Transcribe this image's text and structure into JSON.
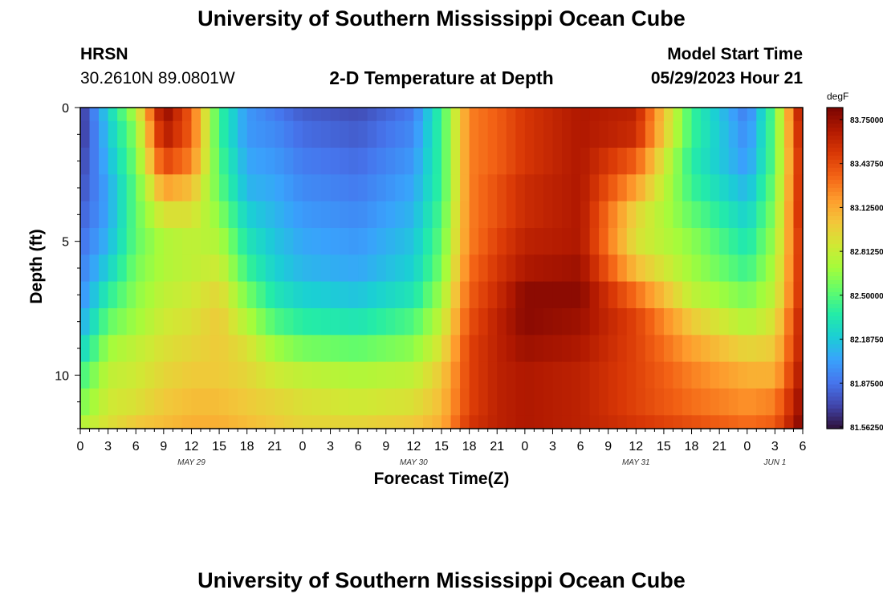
{
  "page": {
    "title_top": "University of Southern Mississippi Ocean Cube",
    "title_bottom": "University of Southern Mississippi Ocean Cube",
    "station_name": "HRSN",
    "station_coords": "30.2610N  89.0801W",
    "model_start_label": "Model Start Time",
    "model_start_value": "05/29/2023 Hour 21"
  },
  "colors": {
    "palette": [
      "#30123b",
      "#4145ab",
      "#4675ed",
      "#39a2fc",
      "#1bcfd4",
      "#24eca6",
      "#61fc6c",
      "#a4fc3b",
      "#d1e834",
      "#f3c63a",
      "#fe9b2d",
      "#f36315",
      "#d93806",
      "#b11901",
      "#7a0402"
    ]
  },
  "chart_data": {
    "type": "heatmap",
    "title": "2-D Temperature at Depth",
    "xlabel": "Forecast Time(Z)",
    "ylabel": "Depth (ft)",
    "x_ticks": [
      "0",
      "3",
      "6",
      "9",
      "12",
      "15",
      "18",
      "21",
      "0",
      "3",
      "6",
      "9",
      "12",
      "15",
      "18",
      "21",
      "0",
      "3",
      "6",
      "9",
      "12",
      "15",
      "18",
      "21",
      "0",
      "3",
      "6"
    ],
    "day_labels": [
      "MAY 29",
      "MAY 30",
      "MAY 31",
      "JUN 1"
    ],
    "y_ticks": [
      "0",
      "5",
      "10"
    ],
    "y_range": [
      0,
      12
    ],
    "x_range_hours": [
      0,
      78
    ],
    "colorbar": {
      "unit": "degF",
      "ticks": [
        "83.75000",
        "83.43750",
        "83.12500",
        "82.81250",
        "82.50000",
        "82.18750",
        "81.87500",
        "81.56250"
      ],
      "range": [
        81.5625,
        83.75
      ]
    },
    "depth_levels_ft": [
      0,
      1,
      2,
      3,
      4,
      5,
      6,
      7,
      8,
      9,
      10,
      11,
      12
    ],
    "keypoints_hours": [
      0,
      3,
      6,
      9,
      12,
      15,
      18,
      21,
      24,
      30,
      36,
      39,
      42,
      45,
      48,
      54,
      60,
      66,
      72,
      75,
      78
    ],
    "temperature_degF": [
      [
        81.65,
        82.2,
        82.7,
        83.7,
        83.3,
        82.4,
        82.0,
        81.9,
        81.8,
        81.75,
        81.9,
        82.4,
        83.2,
        83.3,
        83.45,
        83.6,
        83.55,
        82.4,
        81.9,
        82.5,
        83.7
      ],
      [
        81.65,
        82.15,
        82.6,
        83.6,
        83.3,
        82.4,
        82.0,
        81.95,
        81.85,
        81.8,
        81.95,
        82.4,
        83.2,
        83.3,
        83.45,
        83.6,
        83.5,
        82.4,
        81.95,
        82.5,
        83.65
      ],
      [
        81.7,
        82.1,
        82.55,
        83.4,
        83.2,
        82.45,
        82.05,
        82.0,
        81.9,
        81.85,
        82.0,
        82.4,
        83.2,
        83.3,
        83.45,
        83.6,
        83.3,
        82.35,
        82.0,
        82.5,
        83.6
      ],
      [
        81.75,
        82.05,
        82.5,
        83.1,
        83.0,
        82.5,
        82.1,
        82.05,
        81.95,
        81.9,
        82.05,
        82.4,
        83.2,
        83.35,
        83.5,
        83.6,
        83.1,
        82.4,
        82.1,
        82.55,
        83.6
      ],
      [
        81.8,
        82.05,
        82.5,
        82.85,
        82.85,
        82.6,
        82.2,
        82.1,
        82.0,
        81.95,
        82.1,
        82.45,
        83.2,
        83.35,
        83.5,
        83.6,
        82.9,
        82.5,
        82.2,
        82.6,
        83.6
      ],
      [
        81.85,
        82.1,
        82.5,
        82.7,
        82.75,
        82.7,
        82.3,
        82.15,
        82.05,
        82.0,
        82.15,
        82.5,
        83.2,
        83.4,
        83.55,
        83.6,
        82.85,
        82.6,
        82.3,
        82.65,
        83.55
      ],
      [
        81.9,
        82.2,
        82.55,
        82.7,
        82.75,
        82.8,
        82.4,
        82.2,
        82.1,
        82.05,
        82.2,
        82.55,
        83.25,
        83.45,
        83.6,
        83.65,
        83.0,
        82.65,
        82.4,
        82.7,
        83.55
      ],
      [
        81.95,
        82.35,
        82.6,
        82.75,
        82.8,
        82.9,
        82.55,
        82.3,
        82.2,
        82.15,
        82.3,
        82.65,
        83.3,
        83.5,
        83.7,
        83.7,
        83.25,
        82.75,
        82.55,
        82.75,
        83.55
      ],
      [
        82.05,
        82.5,
        82.65,
        82.8,
        82.85,
        82.95,
        82.7,
        82.45,
        82.35,
        82.3,
        82.45,
        82.75,
        83.35,
        83.55,
        83.7,
        83.65,
        83.4,
        82.95,
        82.7,
        82.85,
        83.6
      ],
      [
        82.2,
        82.65,
        82.75,
        82.85,
        82.9,
        82.95,
        82.85,
        82.65,
        82.55,
        82.5,
        82.6,
        82.85,
        83.4,
        83.55,
        83.65,
        83.6,
        83.4,
        83.1,
        82.9,
        82.95,
        83.6
      ],
      [
        82.4,
        82.75,
        82.8,
        82.9,
        82.95,
        82.95,
        82.9,
        82.8,
        82.75,
        82.7,
        82.75,
        82.95,
        83.4,
        83.55,
        83.6,
        83.55,
        83.4,
        83.2,
        83.05,
        83.05,
        83.65
      ],
      [
        82.55,
        82.8,
        82.85,
        82.95,
        83.0,
        83.0,
        82.95,
        82.9,
        82.85,
        82.8,
        82.85,
        83.0,
        83.4,
        83.55,
        83.6,
        83.55,
        83.4,
        83.25,
        83.15,
        83.2,
        83.7
      ],
      [
        82.7,
        82.85,
        82.95,
        83.0,
        83.05,
        83.05,
        83.0,
        82.95,
        82.9,
        82.9,
        82.95,
        83.05,
        83.45,
        83.55,
        83.6,
        83.55,
        83.45,
        83.35,
        83.25,
        83.3,
        83.75
      ]
    ]
  }
}
